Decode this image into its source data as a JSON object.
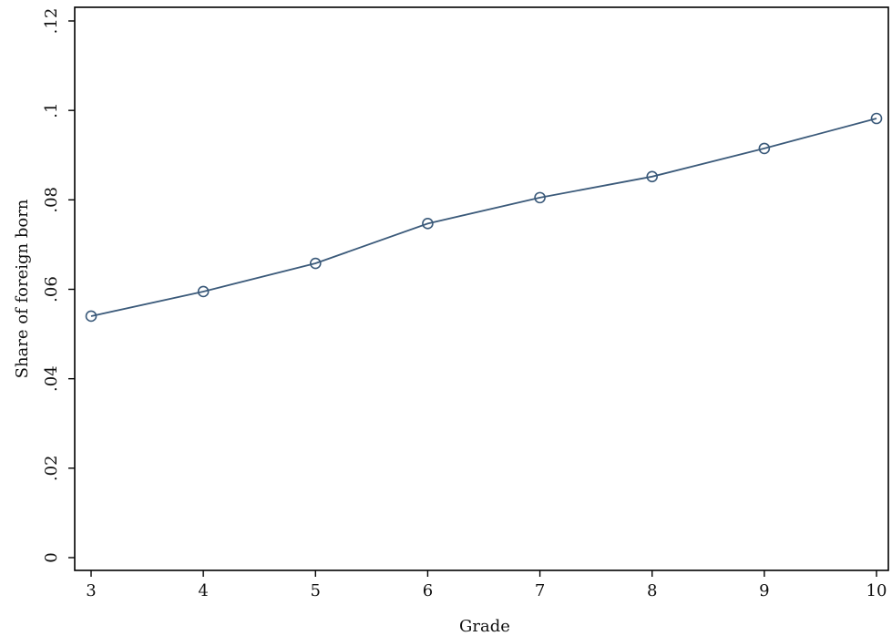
{
  "chart_data": {
    "type": "line",
    "title": "",
    "xlabel": "Grade",
    "ylabel": "Share of foreign born",
    "x": [
      3,
      4,
      5,
      6,
      7,
      8,
      9,
      10
    ],
    "x_tick_labels": [
      "3",
      "4",
      "5",
      "6",
      "7",
      "8",
      "9",
      "10"
    ],
    "y_ticks": [
      0,
      0.02,
      0.04,
      0.06,
      0.08,
      0.1,
      0.12
    ],
    "y_tick_labels": [
      "0",
      ".02",
      ".04",
      ".06",
      ".08",
      ".1",
      ".12"
    ],
    "xlim": [
      3,
      10
    ],
    "ylim": [
      0,
      0.12
    ],
    "grid": false,
    "legend": "none",
    "series": [
      {
        "values": [
          0.054,
          0.0595,
          0.0658,
          0.0747,
          0.0805,
          0.0852,
          0.0915,
          0.0982
        ],
        "color": "#3b5a7a",
        "marker": "hollow-circle"
      }
    ]
  }
}
